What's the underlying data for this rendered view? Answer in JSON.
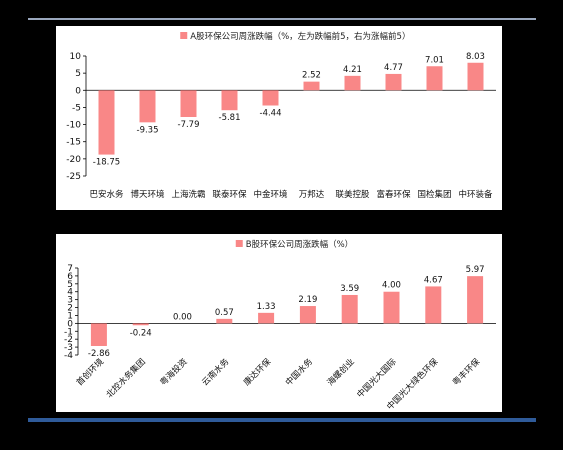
{
  "chart_data": [
    {
      "type": "bar",
      "title": "",
      "legend": "A股环保公司周涨跌幅（%，左为跌幅前5，右为涨幅前5）",
      "legend_position": "top",
      "categories": [
        "巴安水务",
        "博天环境",
        "上海洗霸",
        "联泰环保",
        "中金环境",
        "万邦达",
        "联美控股",
        "富春环保",
        "国检集团",
        "中环装备"
      ],
      "values": [
        -18.75,
        -9.35,
        -7.79,
        -5.81,
        -4.44,
        2.52,
        4.21,
        4.77,
        7.01,
        8.03
      ],
      "value_labels": [
        "-18.75",
        "-9.35",
        "-7.79",
        "-5.81",
        "-4.44",
        "2.52",
        "4.21",
        "4.77",
        "7.01",
        "8.03"
      ],
      "yticks": [
        "10",
        "5",
        "0",
        "-5",
        "-10",
        "-15",
        "-20",
        "-25"
      ],
      "ylim": [
        -25,
        10
      ],
      "grid": false,
      "bar_color": "#f98787",
      "xlabel": "",
      "ylabel": ""
    },
    {
      "type": "bar",
      "title": "",
      "legend": "B股环保公司周涨跌幅（%）",
      "legend_position": "top",
      "categories": [
        "首创环境",
        "北控水务集团",
        "粤海投资",
        "云南水务",
        "康达环保",
        "中国水务",
        "海螺创业",
        "中国光大国际",
        "中国光大绿色环保",
        "粤丰环保"
      ],
      "values": [
        -2.86,
        -0.24,
        0.0,
        0.57,
        1.33,
        2.19,
        3.59,
        4.0,
        4.67,
        5.97
      ],
      "value_labels": [
        "-2.86",
        "-0.24",
        "0.00",
        "0.57",
        "1.33",
        "2.19",
        "3.59",
        "4.00",
        "4.67",
        "5.97"
      ],
      "yticks": [
        "7",
        "6",
        "5",
        "4",
        "3",
        "2",
        "1",
        "0",
        "-1",
        "-2",
        "-3",
        "-4"
      ],
      "ylim": [
        -4,
        7
      ],
      "grid": false,
      "bar_color": "#f98787",
      "xlabel": "",
      "ylabel": ""
    }
  ]
}
